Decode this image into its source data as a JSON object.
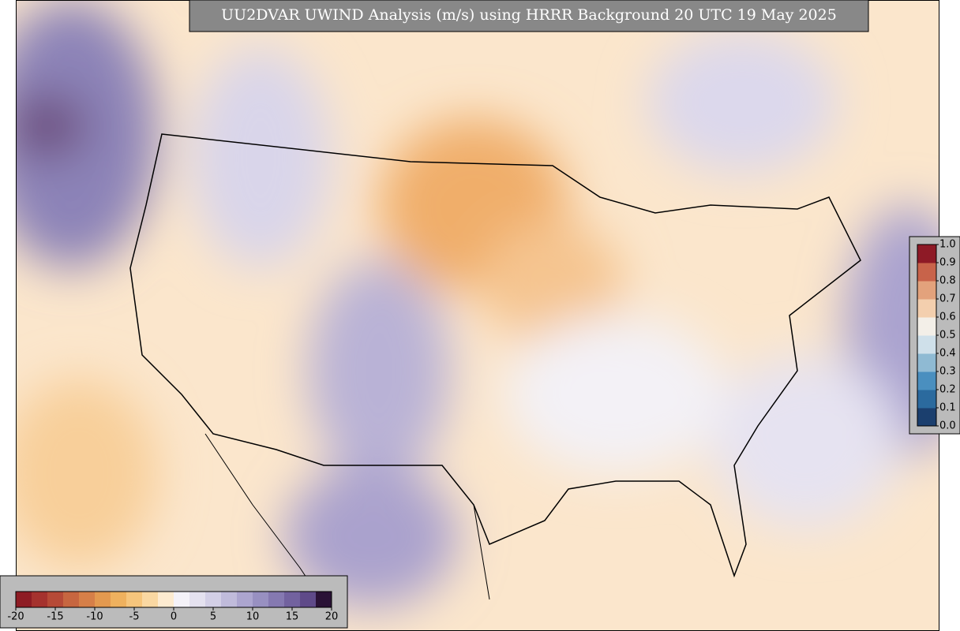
{
  "map": {
    "title": "UU2DVAR UWIND Analysis (m/s) using HRRR Background 20 UTC 19 May 2025",
    "colorbar": {
      "ticks": [
        -20,
        -15,
        -10,
        -5,
        0,
        5,
        10,
        15,
        20
      ],
      "colors": [
        "#8e1c24",
        "#a5322e",
        "#b64a37",
        "#c76640",
        "#d67f48",
        "#e3994f",
        "#efb15e",
        "#f6c57c",
        "#fad8a2",
        "#fdebd0",
        "#f4f2f8",
        "#e4e1ef",
        "#d3cfe6",
        "#c0bbdb",
        "#aca5cf",
        "#9890c1",
        "#8579b1",
        "#72629f",
        "#5f4a89",
        "#2a1236"
      ]
    },
    "score_colorbar": {
      "ticks": [
        {
          "value": 0,
          "label": "0.0"
        },
        0.1,
        0.2,
        0.3,
        0.4,
        0.5,
        0.6,
        0.7,
        0.8,
        0.9,
        {
          "value": 1,
          "label": "1.0"
        }
      ],
      "colors": [
        "#1b3f6e",
        "#2b6a9e",
        "#4a8fbf",
        "#8fbad3",
        "#cfe0ea",
        "#f3efe8",
        "#f3cfae",
        "#e3a27c",
        "#c8634a",
        "#8e1a26"
      ]
    }
  }
}
